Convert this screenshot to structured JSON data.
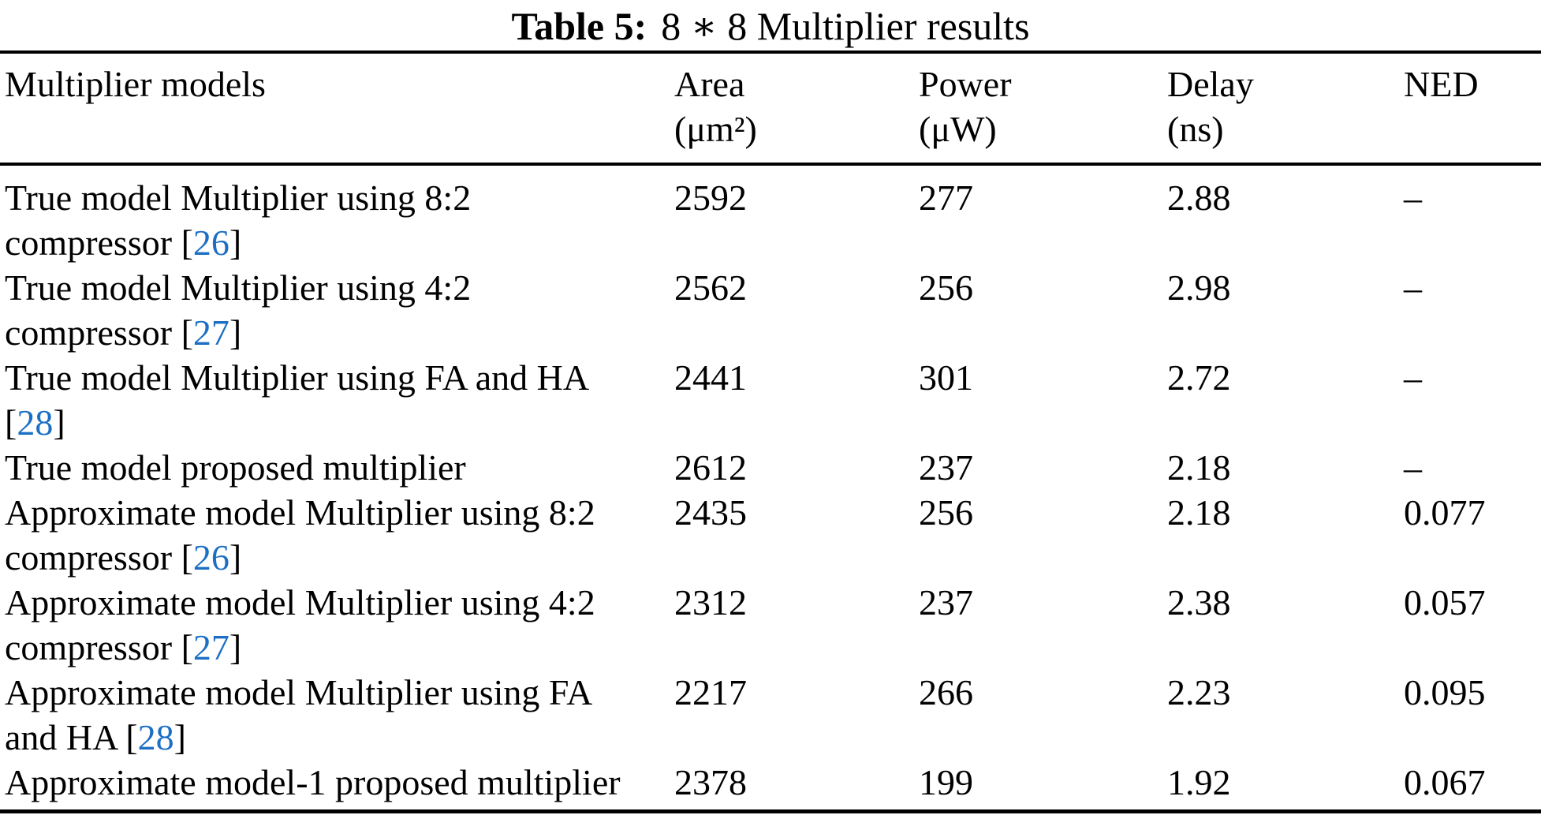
{
  "caption": {
    "label": "Table 5:",
    "text": "8 ∗ 8 Multiplier results"
  },
  "table": {
    "headers": {
      "model": "Multiplier models",
      "area": "Area",
      "area_unit": "(μm²)",
      "power": "Power",
      "power_unit": "(μW)",
      "delay": "Delay",
      "delay_unit": "(ns)",
      "ned": "NED"
    },
    "rows": [
      {
        "line1": "True model Multiplier using 8:2",
        "line2_text": "compressor ",
        "bracket_open": "[",
        "ref": "26",
        "bracket_close": "]",
        "area": "2592",
        "power": "277",
        "delay": "2.88",
        "ned": "–"
      },
      {
        "line1": "True model Multiplier using 4:2",
        "line2_text": "compressor ",
        "bracket_open": "[",
        "ref": "27",
        "bracket_close": "]",
        "area": "2562",
        "power": "256",
        "delay": "2.98",
        "ned": "–"
      },
      {
        "line1": "True model Multiplier using FA and HA",
        "line2_text": "",
        "bracket_open": "[",
        "ref": "28",
        "bracket_close": "]",
        "area": "2441",
        "power": "301",
        "delay": "2.72",
        "ned": "–"
      },
      {
        "line1": "True model proposed multiplier",
        "area": "2612",
        "power": "237",
        "delay": "2.18",
        "ned": "–"
      },
      {
        "line1": "Approximate model Multiplier using 8:2",
        "line2_text": "compressor ",
        "bracket_open": "[",
        "ref": "26",
        "bracket_close": "]",
        "area": "2435",
        "power": "256",
        "delay": "2.18",
        "ned": "0.077"
      },
      {
        "line1": "Approximate model Multiplier using 4:2",
        "line2_text": "compressor ",
        "bracket_open": "[",
        "ref": "27",
        "bracket_close": "]",
        "area": "2312",
        "power": "237",
        "delay": "2.38",
        "ned": "0.057"
      },
      {
        "line1": "Approximate model Multiplier using FA",
        "line2_text": "and HA ",
        "bracket_open": "[",
        "ref": "28",
        "bracket_close": "]",
        "area": "2217",
        "power": "266",
        "delay": "2.23",
        "ned": "0.095"
      },
      {
        "line1": "Approximate model-1 proposed multiplier",
        "area": "2378",
        "power": "199",
        "delay": "1.92",
        "ned": "0.067"
      }
    ]
  },
  "colors": {
    "link_blue": "#1c6fc4",
    "text": "#000000",
    "rule": "#000000",
    "background": "#ffffff"
  }
}
